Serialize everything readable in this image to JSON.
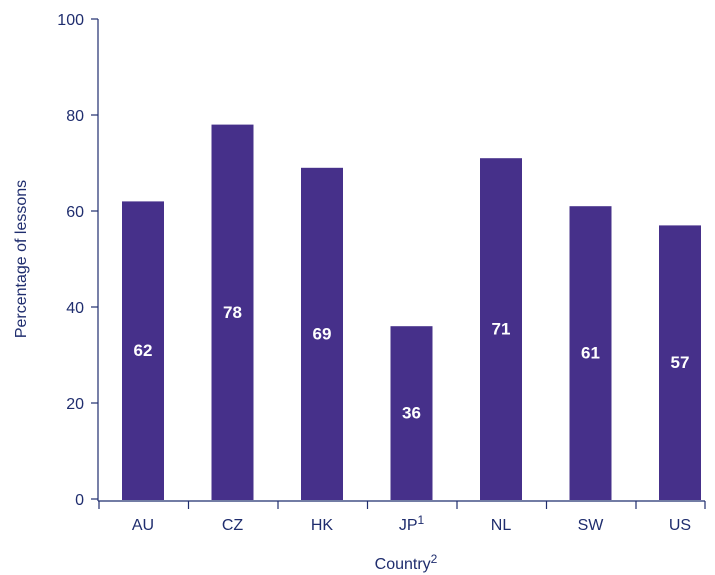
{
  "chart_data": {
    "type": "bar",
    "categories": [
      "AU",
      "CZ",
      "HK",
      "JP",
      "NL",
      "SW",
      "US"
    ],
    "category_superscripts": [
      "",
      "",
      "",
      "1",
      "",
      "",
      ""
    ],
    "values": [
      62,
      78,
      69,
      36,
      71,
      61,
      57
    ],
    "data_labels": [
      "62",
      "78",
      "69",
      "36",
      "71",
      "61",
      "57"
    ],
    "xlabel": "Country",
    "xlabel_superscript": "2",
    "ylabel": "Percentage of lessons",
    "ylim": [
      0,
      100
    ],
    "yticks": [
      0,
      20,
      40,
      60,
      80,
      100
    ],
    "grid": false,
    "legend": "none",
    "bar_color": "#46308a",
    "text_color": "#1f2d6e",
    "label_color": "#ffffff"
  }
}
